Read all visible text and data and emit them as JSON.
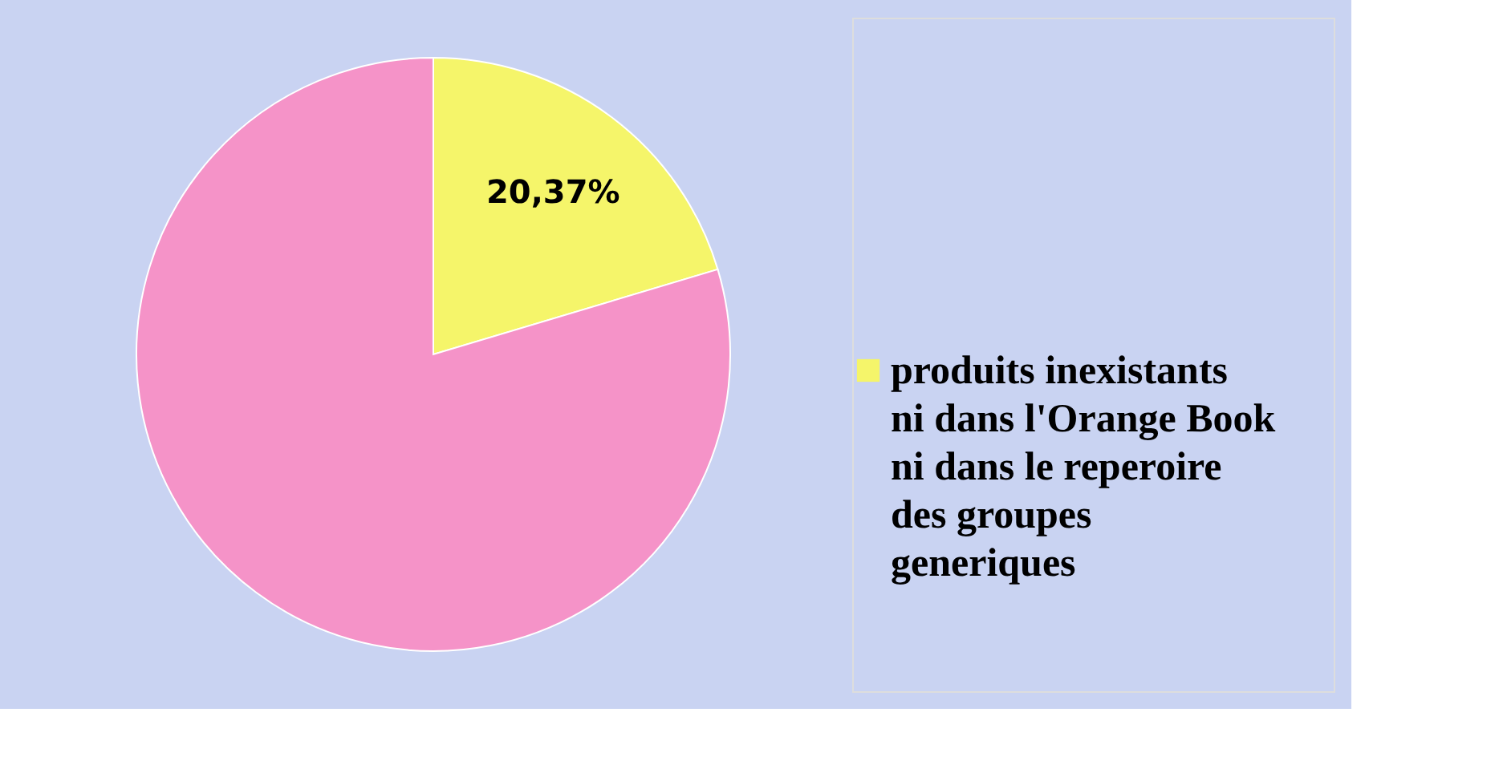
{
  "chart_data": {
    "type": "pie",
    "categories": [
      "produits inexistants ni dans l'Orange Book ni dans le reperoire des groupes generiques",
      null
    ],
    "values": [
      20.37,
      79.63
    ],
    "colors": [
      "#f5f56a",
      "#f593c8"
    ],
    "value_labels": [
      "20,37%",
      null
    ],
    "legend": "right"
  }
}
